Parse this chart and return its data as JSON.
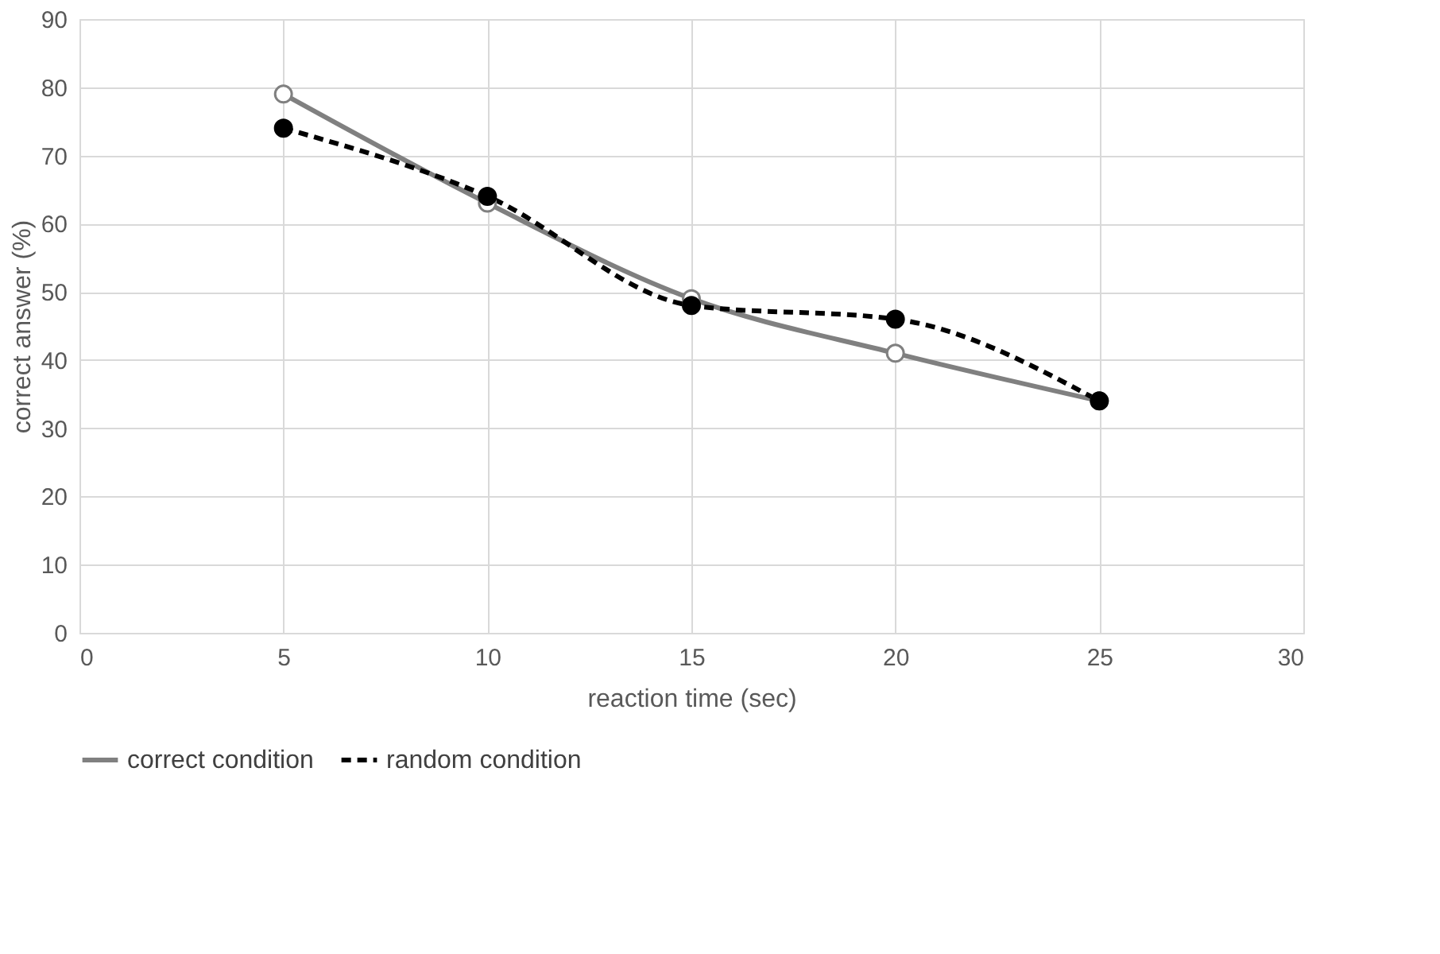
{
  "chart_data": {
    "type": "line",
    "xlabel": "reaction time (sec)",
    "ylabel": "correct answer (%)",
    "x": [
      5,
      10,
      15,
      20,
      25
    ],
    "series": [
      {
        "name": "correct condition",
        "color": "#808080",
        "values": [
          79,
          63,
          49,
          41,
          34
        ],
        "line_style": "solid"
      },
      {
        "name": "random condition",
        "color": "#000000",
        "values": [
          74,
          64,
          48,
          46,
          34
        ],
        "line_style": "dashed"
      }
    ],
    "xlim": [
      0,
      30
    ],
    "xticks": [
      0,
      5,
      10,
      15,
      20,
      25,
      30
    ],
    "ylim": [
      0,
      90
    ],
    "yticks": [
      0,
      10,
      20,
      30,
      40,
      50,
      60,
      70,
      80,
      90
    ],
    "grid": true,
    "legend": "bottom",
    "marker": "circle"
  }
}
